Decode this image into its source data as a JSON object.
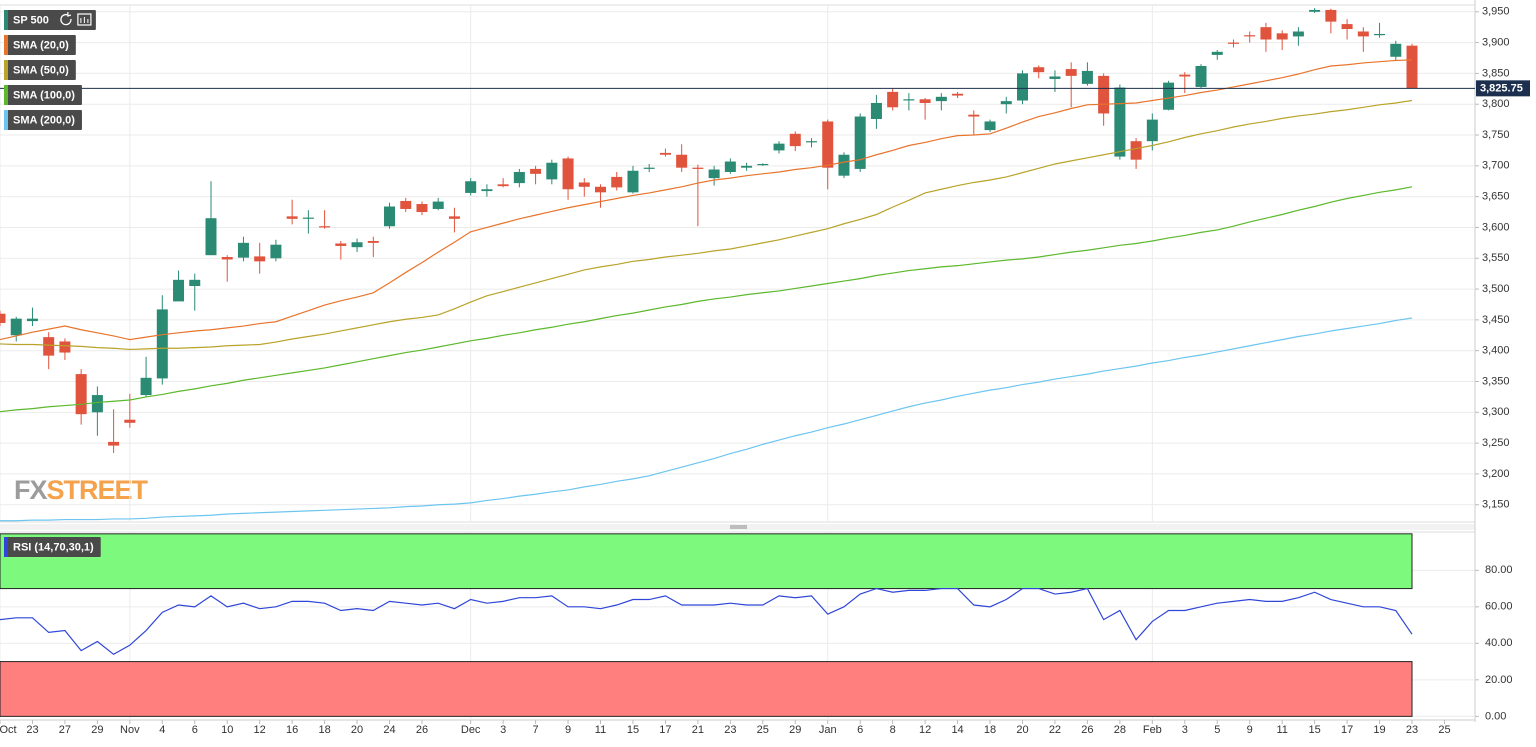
{
  "watermark": [
    "FX",
    "STREET"
  ],
  "chart_data": [
    {
      "type": "candlestick",
      "categories": [
        "Oct",
        null,
        "23",
        null,
        "27",
        null,
        "29",
        null,
        "Nov",
        null,
        "4",
        null,
        "6",
        null,
        "10",
        null,
        "12",
        null,
        "16",
        null,
        "18",
        null,
        "20",
        null,
        "24",
        null,
        "26",
        null,
        null,
        "Dec",
        null,
        "3",
        null,
        "7",
        null,
        "9",
        null,
        "11",
        null,
        "15",
        null,
        "17",
        null,
        "21",
        null,
        "23",
        null,
        "25",
        null,
        "29",
        null,
        "Jan",
        null,
        "6",
        null,
        "8",
        null,
        "12",
        null,
        "14",
        null,
        "18",
        null,
        "20",
        null,
        "22",
        null,
        "26",
        null,
        "28",
        null,
        "Feb",
        null,
        "3",
        null,
        "5",
        null,
        "9",
        null,
        "11",
        null,
        "15",
        null,
        "17",
        null,
        "19",
        null,
        "23",
        null,
        "25"
      ],
      "series": [
        {
          "name": "SP 500",
          "color": "#2a8a74",
          "up_color": "#2a8a74",
          "down_color": "#e0533d",
          "open": [
            3460,
            3425,
            3448,
            3422,
            3415,
            3362,
            3300,
            3252,
            3288,
            3328,
            3355,
            3480,
            3505,
            3555,
            3552,
            3551,
            3553,
            3550,
            3618,
            3615,
            3602,
            3574,
            3568,
            3578,
            3602,
            3643,
            3638,
            3630,
            3618,
            3656,
            3659,
            3670,
            3672,
            3695,
            3678,
            3712,
            3673,
            3666,
            3682,
            3657,
            3697,
            3721,
            3718,
            3697,
            3680,
            3690,
            3697,
            3701,
            3725,
            3752,
            3739,
            3772,
            3684,
            3695,
            3776,
            3820,
            3808,
            3808,
            3805,
            3817,
            3783,
            3758,
            3800,
            3806,
            3860,
            3841,
            3857,
            3833,
            3846,
            3715,
            3740,
            3740,
            3791,
            3848,
            3828,
            3880,
            3900,
            3912,
            3925,
            3915,
            3910,
            3950,
            3953,
            3930,
            3918,
            3912,
            3877,
            3895,
            null,
            null
          ],
          "high": [
            3465,
            3455,
            3470,
            3430,
            3420,
            3370,
            3342,
            3305,
            3330,
            3390,
            3490,
            3530,
            3525,
            3675,
            3555,
            3585,
            3575,
            3580,
            3645,
            3628,
            3628,
            3578,
            3582,
            3585,
            3640,
            3648,
            3642,
            3648,
            3632,
            3680,
            3670,
            3680,
            3695,
            3700,
            3710,
            3715,
            3680,
            3670,
            3690,
            3700,
            3703,
            3728,
            3735,
            3702,
            3700,
            3712,
            3705,
            3704,
            3740,
            3756,
            3745,
            3775,
            3722,
            3785,
            3815,
            3825,
            3818,
            3810,
            3818,
            3820,
            3790,
            3775,
            3812,
            3855,
            3863,
            3855,
            3868,
            3868,
            3850,
            3832,
            3745,
            3785,
            3838,
            3852,
            3865,
            3888,
            3905,
            3918,
            3932,
            3920,
            3925,
            3956,
            3955,
            3938,
            3925,
            3932,
            3903,
            3898,
            null,
            null
          ],
          "low": [
            3440,
            3415,
            3440,
            3370,
            3385,
            3280,
            3262,
            3234,
            3275,
            3325,
            3345,
            3480,
            3465,
            3555,
            3512,
            3545,
            3525,
            3545,
            3605,
            3590,
            3598,
            3548,
            3560,
            3552,
            3598,
            3625,
            3620,
            3628,
            3592,
            3652,
            3650,
            3665,
            3665,
            3670,
            3670,
            3645,
            3650,
            3632,
            3660,
            3655,
            3690,
            3715,
            3690,
            3602,
            3668,
            3687,
            3692,
            3700,
            3720,
            3724,
            3730,
            3662,
            3680,
            3690,
            3760,
            3790,
            3790,
            3775,
            3790,
            3810,
            3750,
            3755,
            3785,
            3800,
            3842,
            3820,
            3795,
            3830,
            3765,
            3710,
            3695,
            3725,
            3790,
            3818,
            3826,
            3872,
            3892,
            3900,
            3885,
            3888,
            3895,
            3948,
            3915,
            3905,
            3885,
            3908,
            3870,
            3825,
            null,
            null
          ],
          "close": [
            3445,
            3452,
            3452,
            3392,
            3397,
            3297,
            3328,
            3246,
            3283,
            3356,
            3467,
            3515,
            3515,
            3615,
            3548,
            3575,
            3545,
            3572,
            3614,
            3616,
            3600,
            3570,
            3576,
            3575,
            3634,
            3630,
            3625,
            3642,
            3614,
            3675,
            3662,
            3667,
            3690,
            3687,
            3705,
            3662,
            3666,
            3657,
            3665,
            3692,
            3697,
            3718,
            3697,
            3695,
            3694,
            3707,
            3700,
            3703,
            3736,
            3732,
            3740,
            3697,
            3718,
            3780,
            3802,
            3795,
            3808,
            3802,
            3812,
            3814,
            3780,
            3772,
            3805,
            3850,
            3852,
            3845,
            3846,
            3854,
            3785,
            3827,
            3710,
            3775,
            3835,
            3845,
            3862,
            3885,
            3898,
            3910,
            3905,
            3905,
            3918,
            3953,
            3934,
            3922,
            3910,
            3914,
            3898,
            3825.75,
            null,
            null
          ]
        },
        {
          "name": "SMA (20,0)",
          "color": "#e8742c",
          "values": [
            3418,
            3424,
            3430,
            3435,
            3440,
            3434,
            3429,
            3424,
            3418,
            3422,
            3426,
            3429,
            3432,
            3434,
            3437,
            3440,
            3444,
            3447,
            3456,
            3465,
            3474,
            3481,
            3487,
            3494,
            3510,
            3527,
            3543,
            3560,
            3576,
            3593,
            3600,
            3607,
            3614,
            3620,
            3626,
            3632,
            3637,
            3642,
            3647,
            3652,
            3656,
            3661,
            3666,
            3672,
            3677,
            3680,
            3684,
            3687,
            3690,
            3694,
            3697,
            3701,
            3706,
            3710,
            3718,
            3725,
            3733,
            3738,
            3744,
            3749,
            3750,
            3752,
            3761,
            3771,
            3780,
            3786,
            3793,
            3799,
            3800,
            3801,
            3802,
            3806,
            3810,
            3814,
            3819,
            3823,
            3828,
            3833,
            3838,
            3843,
            3849,
            3856,
            3862,
            3864,
            3867,
            3869,
            3871,
            3872,
            null,
            null
          ]
        },
        {
          "name": "SMA (50,0)",
          "color": "#b9a32a",
          "values": [
            3411,
            3410,
            3410,
            3409,
            3408,
            3407,
            3405,
            3404,
            3402,
            3403,
            3404,
            3404,
            3405,
            3406,
            3408,
            3409,
            3410,
            3414,
            3419,
            3423,
            3427,
            3432,
            3437,
            3442,
            3447,
            3451,
            3454,
            3458,
            3468,
            3479,
            3489,
            3496,
            3503,
            3510,
            3517,
            3524,
            3531,
            3536,
            3540,
            3545,
            3548,
            3552,
            3555,
            3558,
            3562,
            3565,
            3570,
            3575,
            3580,
            3586,
            3592,
            3598,
            3606,
            3613,
            3621,
            3633,
            3644,
            3656,
            3662,
            3668,
            3673,
            3677,
            3682,
            3689,
            3696,
            3703,
            3708,
            3713,
            3718,
            3723,
            3728,
            3733,
            3739,
            3746,
            3752,
            3757,
            3763,
            3768,
            3772,
            3777,
            3781,
            3784,
            3788,
            3791,
            3795,
            3799,
            3802,
            3806,
            null,
            null
          ]
        },
        {
          "name": "SMA (100,0)",
          "color": "#5cb82c",
          "values": [
            3301,
            3304,
            3306,
            3309,
            3311,
            3313,
            3316,
            3318,
            3320,
            3325,
            3329,
            3334,
            3338,
            3343,
            3347,
            3352,
            3356,
            3360,
            3364,
            3368,
            3372,
            3377,
            3382,
            3387,
            3392,
            3397,
            3401,
            3406,
            3411,
            3416,
            3420,
            3425,
            3429,
            3434,
            3438,
            3443,
            3447,
            3452,
            3457,
            3461,
            3466,
            3471,
            3475,
            3480,
            3484,
            3487,
            3491,
            3494,
            3497,
            3501,
            3505,
            3509,
            3513,
            3517,
            3522,
            3526,
            3530,
            3533,
            3536,
            3538,
            3541,
            3544,
            3547,
            3549,
            3552,
            3556,
            3560,
            3563,
            3567,
            3571,
            3574,
            3578,
            3583,
            3587,
            3592,
            3596,
            3602,
            3609,
            3615,
            3621,
            3628,
            3634,
            3641,
            3647,
            3652,
            3657,
            3661,
            3666,
            null,
            null
          ]
        },
        {
          "name": "SMA (200,0)",
          "color": "#6cc5f0",
          "values": [
            3124,
            3124,
            3125,
            3125,
            3126,
            3126,
            3126,
            3127,
            3127,
            3128,
            3130,
            3131,
            3132,
            3133,
            3135,
            3136,
            3137,
            3138,
            3139,
            3140,
            3141,
            3142,
            3143,
            3144,
            3145,
            3147,
            3148,
            3150,
            3151,
            3153,
            3157,
            3160,
            3164,
            3167,
            3171,
            3174,
            3179,
            3183,
            3188,
            3192,
            3197,
            3204,
            3211,
            3218,
            3225,
            3233,
            3240,
            3248,
            3255,
            3262,
            3268,
            3275,
            3281,
            3288,
            3295,
            3302,
            3309,
            3315,
            3320,
            3326,
            3331,
            3336,
            3340,
            3345,
            3349,
            3354,
            3358,
            3362,
            3367,
            3371,
            3375,
            3380,
            3384,
            3389,
            3393,
            3398,
            3403,
            3408,
            3413,
            3418,
            3423,
            3427,
            3432,
            3436,
            3440,
            3444,
            3449,
            3453,
            null,
            null
          ]
        }
      ],
      "ylim": [
        3122,
        3961
      ],
      "yticks": [
        {
          "value": 3150,
          "label": "3,150"
        },
        {
          "value": 3200,
          "label": "3,200"
        },
        {
          "value": 3250,
          "label": "3,250"
        },
        {
          "value": 3300,
          "label": "3,300"
        },
        {
          "value": 3350,
          "label": "3,350"
        },
        {
          "value": 3400,
          "label": "3,400"
        },
        {
          "value": 3450,
          "label": "3,450"
        },
        {
          "value": 3500,
          "label": "3,500"
        },
        {
          "value": 3550,
          "label": "3,550"
        },
        {
          "value": 3600,
          "label": "3,600"
        },
        {
          "value": 3650,
          "label": "3,650"
        },
        {
          "value": 3700,
          "label": "3,700"
        },
        {
          "value": 3750,
          "label": "3,750"
        },
        {
          "value": 3800,
          "label": "3,800"
        },
        {
          "value": 3850,
          "label": "3,850"
        },
        {
          "value": 3900,
          "label": "3,900"
        },
        {
          "value": 3950,
          "label": "3,950"
        }
      ],
      "last_price": {
        "value": 3825.75,
        "label": "3,825.75",
        "color": "#1c2f4e"
      },
      "grid": true
    },
    {
      "type": "line",
      "series": [
        {
          "name": "RSI (14,70,30,1)",
          "color": "#2f46d8",
          "values": [
            53,
            54,
            54,
            46,
            47,
            36,
            41,
            34,
            39,
            47,
            57,
            61,
            60,
            66,
            60,
            62,
            59,
            60,
            63,
            63,
            62,
            58,
            59,
            58,
            63,
            62,
            61,
            62,
            59,
            64,
            62,
            63,
            65,
            65,
            66,
            60,
            60,
            59,
            61,
            64,
            64,
            66,
            61,
            61,
            61,
            62,
            61,
            61,
            66,
            65,
            66,
            56,
            60,
            67,
            70,
            68,
            69,
            69,
            70,
            70,
            61,
            60,
            64,
            70,
            70,
            67,
            68,
            70,
            53,
            58,
            42,
            52,
            58,
            58,
            60,
            62,
            63,
            64,
            63,
            63,
            65,
            68,
            64,
            62,
            60,
            60,
            58,
            45,
            null,
            null
          ]
        }
      ],
      "ylim": [
        -2,
        101
      ],
      "yticks": [
        {
          "value": 0,
          "label": "0.00"
        },
        {
          "value": 20,
          "label": "20.00"
        },
        {
          "value": 40,
          "label": "40.00"
        },
        {
          "value": 60,
          "label": "60.00"
        },
        {
          "value": 80,
          "label": "80.00"
        }
      ],
      "zones": [
        {
          "from": 70,
          "to": 100,
          "color": "#7dfa7d"
        },
        {
          "from": 0,
          "to": 30,
          "color": "#ff7e7e"
        }
      ],
      "grid": true
    }
  ]
}
